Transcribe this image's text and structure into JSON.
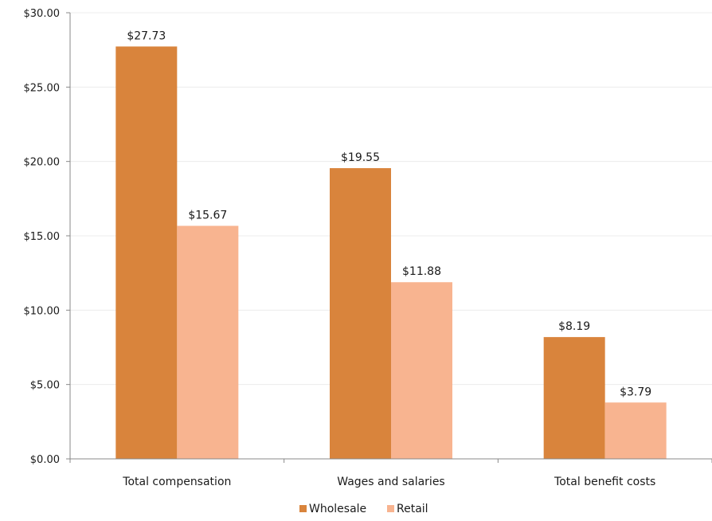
{
  "chart_data": {
    "type": "bar",
    "title": "",
    "xlabel": "",
    "ylabel": "",
    "categories": [
      "Total compensation",
      "Wages and salaries",
      "Total benefit costs"
    ],
    "series": [
      {
        "name": "Wholesale",
        "values": [
          27.73,
          19.55,
          8.19
        ],
        "color": "#D9843C",
        "labels": [
          "$27.73",
          "$19.55",
          "$8.19"
        ]
      },
      {
        "name": "Retail",
        "values": [
          15.67,
          11.88,
          3.79
        ],
        "color": "#F8B490",
        "labels": [
          "$15.67",
          "$11.88",
          "$3.79"
        ]
      }
    ],
    "ylim": [
      0,
      30
    ],
    "yticks": [
      0,
      5,
      10,
      15,
      20,
      25,
      30
    ],
    "ytick_labels": [
      "$0.00",
      "$5.00",
      "$10.00",
      "$15.00",
      "$20.00",
      "$25.00",
      "$30.00"
    ],
    "grid": true,
    "legend": "bottom-center"
  }
}
